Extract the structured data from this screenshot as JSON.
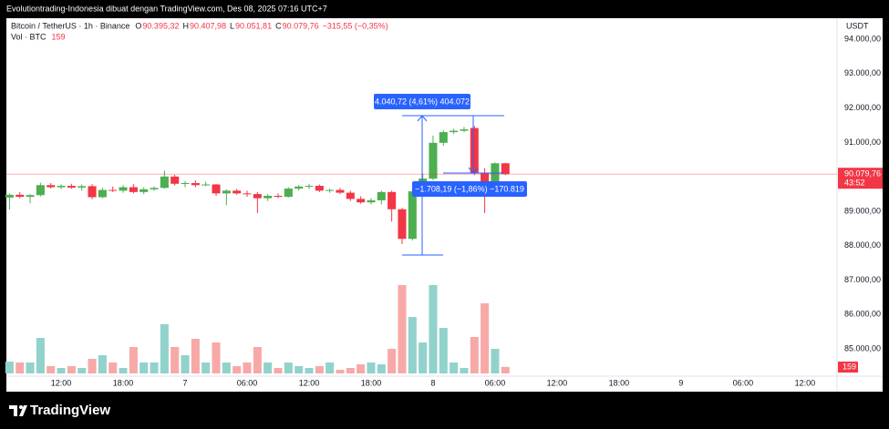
{
  "header": {
    "text": "Evolutiontrading-Indonesia dibuat dengan TradingView.com, Des 08, 2025 07:16 UTC+7"
  },
  "footer": {
    "logo": "TradingView"
  },
  "chart_data": {
    "type": "candlestick",
    "symbol": "Bitcoin / TetherUS · 1h · Binance",
    "legend": [
      {
        "label": "O",
        "value": "90.395,32"
      },
      {
        "label": "H",
        "value": "90.407,98"
      },
      {
        "label": "L",
        "value": "90.051,81"
      },
      {
        "label": "C",
        "value": "90.079,76"
      }
    ],
    "change": "−315,55 (−0,35%)",
    "volume_label": "Vol · BTC",
    "currency": "USDT",
    "countdown": "43:52",
    "annotations": [
      "4.040,72 (4,61%) 404.072",
      "−1.708,19 (−1,86%) −170.819"
    ],
    "x": [
      0,
      1,
      2,
      3,
      4,
      5,
      6,
      7,
      8,
      9,
      10,
      11,
      12,
      13,
      14,
      15,
      16,
      17,
      18,
      19,
      20,
      21,
      22,
      23,
      24,
      25,
      26,
      27,
      28,
      29,
      30,
      31,
      32,
      33,
      34,
      35,
      36,
      37,
      38,
      39,
      40,
      41,
      42,
      43,
      44,
      45,
      46,
      47,
      48
    ],
    "open": [
      89400,
      89480,
      89420,
      89470,
      89760,
      89700,
      89740,
      89690,
      89730,
      89410,
      89620,
      89600,
      89700,
      89560,
      89640,
      89680,
      90010,
      89800,
      89820,
      89760,
      89780,
      89520,
      89600,
      89520,
      89500,
      89380,
      89450,
      89420,
      89660,
      89720,
      89740,
      89600,
      89620,
      89540,
      89360,
      89260,
      89320,
      89560,
      89060,
      88200,
      89580,
      89950,
      90990,
      91300,
      91340,
      91420,
      90100,
      89850,
      90395.32
    ],
    "high": [
      89520,
      89560,
      89500,
      89830,
      89820,
      89780,
      89800,
      89780,
      89790,
      89680,
      89720,
      89760,
      89790,
      89700,
      89720,
      90180,
      90060,
      89880,
      89900,
      89860,
      89800,
      89640,
      89650,
      89600,
      89560,
      89500,
      89520,
      89700,
      89760,
      89800,
      89780,
      89660,
      89680,
      89600,
      89440,
      89380,
      89600,
      89600,
      89100,
      89650,
      90100,
      91200,
      91350,
      91400,
      91450,
      91480,
      90250,
      90420,
      90407.98
    ],
    "low": [
      89050,
      89380,
      89230,
      89430,
      89660,
      89640,
      89650,
      89600,
      89350,
      89380,
      89560,
      89540,
      89520,
      89500,
      89600,
      89660,
      89750,
      89700,
      89700,
      89730,
      89450,
      89180,
      89480,
      89420,
      88950,
      89300,
      89380,
      89400,
      89600,
      89650,
      89560,
      89540,
      89500,
      89300,
      89220,
      89200,
      89200,
      88700,
      88050,
      88150,
      89500,
      89900,
      90900,
      91250,
      91300,
      90050,
      88950,
      89800,
      90051.81
    ],
    "close": [
      89480,
      89420,
      89470,
      89760,
      89700,
      89740,
      89690,
      89730,
      89410,
      89620,
      89600,
      89700,
      89560,
      89640,
      89680,
      90010,
      89800,
      89820,
      89760,
      89780,
      89520,
      89600,
      89520,
      89500,
      89380,
      89450,
      89420,
      89660,
      89720,
      89740,
      89600,
      89620,
      89540,
      89360,
      89260,
      89320,
      89560,
      89060,
      88200,
      89580,
      89950,
      90990,
      91300,
      91340,
      91380,
      90100,
      89850,
      90395.32,
      90079.76
    ],
    "volume": [
      286,
      264,
      264,
      858,
      176,
      132,
      176,
      132,
      352,
      440,
      264,
      132,
      638,
      264,
      264,
      1188,
      638,
      440,
      836,
      264,
      748,
      264,
      176,
      264,
      638,
      264,
      132,
      264,
      176,
      132,
      176,
      264,
      88,
      132,
      220,
      264,
      220,
      594,
      2134,
      1364,
      748,
      2134,
      1100,
      264,
      132,
      880,
      1694,
      594,
      159
    ],
    "up_color": "#4caf50",
    "down_color": "#f23645",
    "volume_up_color": "#92d2cc",
    "volume_down_color": "#f7a9a7",
    "xlim": [
      -0.3,
      80.1
    ],
    "xticks": [
      {
        "value": 5,
        "label": "12:00"
      },
      {
        "value": 11,
        "label": "18:00"
      },
      {
        "value": 17,
        "label": "7"
      },
      {
        "value": 23,
        "label": "06:00"
      },
      {
        "value": 29,
        "label": "12:00"
      },
      {
        "value": 35,
        "label": "18:00"
      },
      {
        "value": 41,
        "label": "8"
      },
      {
        "value": 47,
        "label": "06:00"
      },
      {
        "value": 53,
        "label": "12:00"
      },
      {
        "value": 59,
        "label": "18:00"
      },
      {
        "value": 65,
        "label": "9"
      },
      {
        "value": 71,
        "label": "06:00"
      },
      {
        "value": 77,
        "label": "12:00"
      }
    ],
    "ylim": [
      84210,
      94610
    ],
    "yticks": [
      {
        "value": 85000,
        "label": "85.000,00"
      },
      {
        "value": 86000,
        "label": "86.000,00"
      },
      {
        "value": 87000,
        "label": "87.000,00"
      },
      {
        "value": 88000,
        "label": "88.000,00"
      },
      {
        "value": 89000,
        "label": "89.000,00"
      },
      {
        "value": 90000,
        "label": "90.000,00"
      },
      {
        "value": 91000,
        "label": "91.000,00"
      },
      {
        "value": 92000,
        "label": "92.000,00"
      },
      {
        "value": 93000,
        "label": "93.000,00"
      },
      {
        "value": 94000,
        "label": "94.000,00"
      }
    ],
    "grid": false
  }
}
